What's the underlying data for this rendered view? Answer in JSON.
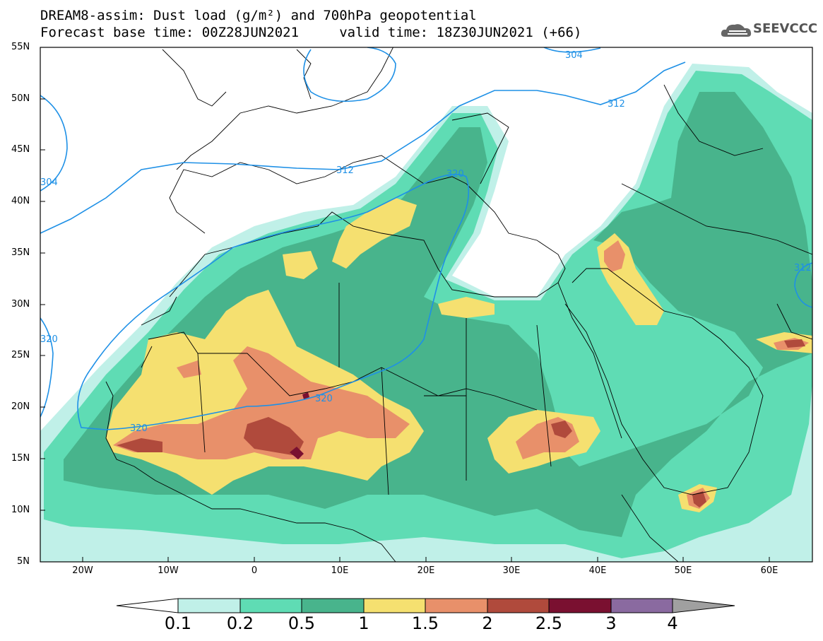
{
  "header": {
    "line1": "DREAM8-assim: Dust load (g/m²) and 700hPa geopotential",
    "line2": "Forecast base time: 00Z28JUN2021     valid time: 18Z30JUN2021 (+66)"
  },
  "logo": {
    "text": "SEEVCCC",
    "icon": "cloud-logo-icon"
  },
  "axes": {
    "lat_labels": [
      "55N",
      "50N",
      "45N",
      "40N",
      "35N",
      "30N",
      "25N",
      "20N",
      "15N",
      "10N",
      "5N"
    ],
    "lon_labels": [
      "20W",
      "10W",
      "0",
      "10E",
      "20E",
      "30E",
      "40E",
      "50E",
      "60E"
    ],
    "lon_range": [
      -25,
      65
    ],
    "lat_range": [
      5,
      55
    ]
  },
  "contours": {
    "labels": [
      "304",
      "312",
      "312",
      "320",
      "320",
      "320",
      "320",
      "304",
      "312"
    ]
  },
  "colorbar": {
    "ticks": [
      "0.1",
      "0.2",
      "0.5",
      "1",
      "1.5",
      "2",
      "2.5",
      "3",
      "4"
    ],
    "colors": [
      "#ffffff",
      "#c0f0e8",
      "#5fdcb4",
      "#48b48c",
      "#f5e070",
      "#e8906a",
      "#b04a3c",
      "#7a1030",
      "#8a6aa0",
      "#a0a0a0"
    ]
  },
  "dust_colors": {
    "c1": "#c0f0e8",
    "c2": "#5fdcb4",
    "c3": "#48b48c",
    "c4": "#f5e070",
    "c5": "#e8906a",
    "c6": "#b04a3c",
    "c7": "#7a1030"
  },
  "contour_color": "#1e90e6"
}
